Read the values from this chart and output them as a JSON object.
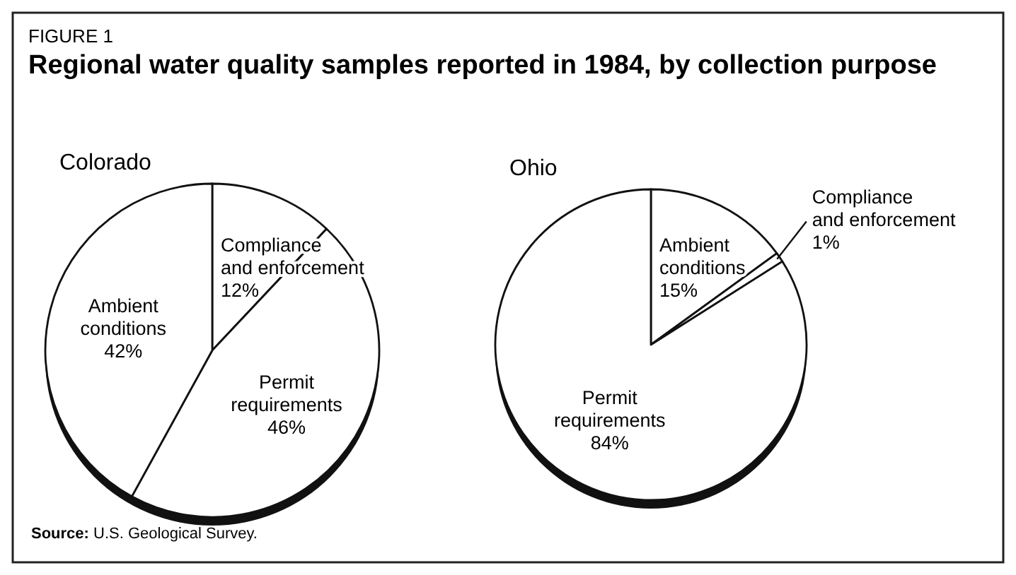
{
  "chart_data": [
    {
      "type": "pie",
      "title": "Colorado",
      "categories": [
        "Compliance and enforcement",
        "Permit requirements",
        "Ambient conditions"
      ],
      "values": [
        12,
        46,
        42
      ],
      "colors": [
        "#ffffff",
        "#ffffff",
        "#ffffff"
      ],
      "value_labels": [
        "12%",
        "46%",
        "42%"
      ],
      "annotations": [
        "FIGURE 1",
        "Regional water quality samples reported in 1984, by collection purpose",
        "Source: U.S. Geological Survey."
      ]
    },
    {
      "type": "pie",
      "title": "Ohio",
      "categories": [
        "Ambient conditions",
        "Compliance and enforcement",
        "Permit requirements"
      ],
      "values": [
        15,
        1,
        84
      ],
      "colors": [
        "#ffffff",
        "#ffffff",
        "#ffffff"
      ],
      "value_labels": [
        "15%",
        "1%",
        "84%"
      ]
    }
  ]
}
